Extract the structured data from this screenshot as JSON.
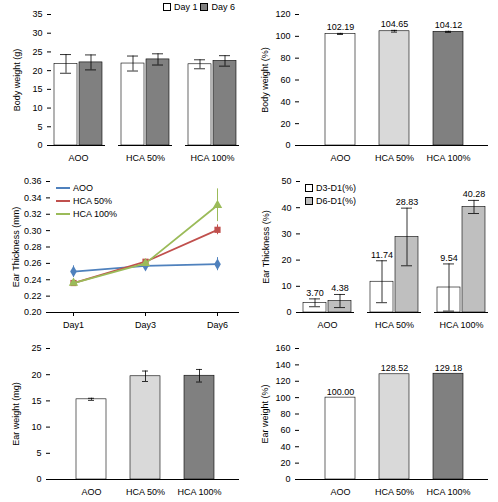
{
  "chart_data": [
    {
      "type": "bar",
      "y_label": "Body weight (g)",
      "categories": [
        "AOO",
        "HCA 50%",
        "HCA 100%"
      ],
      "series": [
        {
          "name": "Day 1",
          "color": "#ffffff",
          "values": [
            21.8,
            21.9,
            21.7
          ],
          "errors": [
            2.5,
            2.0,
            1.2
          ]
        },
        {
          "name": "Day 6",
          "color": "#808080",
          "values": [
            22.2,
            23.0,
            22.6
          ],
          "errors": [
            2.0,
            1.5,
            1.4
          ]
        }
      ],
      "ylim": [
        0,
        35
      ],
      "yticks": [
        0,
        5,
        10,
        15,
        20,
        25,
        30,
        35
      ],
      "legend": "top-right"
    },
    {
      "type": "bar",
      "y_label": "Body weight (%)",
      "categories": [
        "AOO",
        "HCA 50%",
        "HCA 100%"
      ],
      "values": [
        102.19,
        104.65,
        104.12
      ],
      "value_labels": [
        "102.19",
        "104.65",
        "104.12"
      ],
      "errors": [
        0.5,
        0.8,
        0.5
      ],
      "colors": [
        "#ffffff",
        "#d9d9d9",
        "#808080"
      ],
      "ylim": [
        0,
        120
      ],
      "yticks": [
        0,
        20,
        40,
        60,
        80,
        100,
        120
      ],
      "data_labels": true
    },
    {
      "type": "line",
      "y_label": "Ear Thickness (mm)",
      "x": [
        "Day1",
        "Day3",
        "Day6"
      ],
      "series": [
        {
          "name": "AOO",
          "color": "#4f81bd",
          "marker": "diamond",
          "values": [
            0.25,
            0.257,
            0.259
          ],
          "errors": [
            0.007,
            null,
            0.008
          ]
        },
        {
          "name": "HCA 50%",
          "color": "#c0504d",
          "marker": "square",
          "values": [
            0.236,
            0.262,
            0.301
          ],
          "errors": [
            null,
            null,
            0.006
          ]
        },
        {
          "name": "HCA 100%",
          "color": "#9bbb59",
          "marker": "triangle",
          "values": [
            0.236,
            0.26,
            0.331
          ],
          "errors": [
            null,
            null,
            0.02
          ]
        }
      ],
      "ylim": [
        0.2,
        0.36
      ],
      "yticks": [
        {
          "value": 0.2,
          "label": "0.20"
        },
        0.22,
        0.24,
        0.26,
        0.28,
        {
          "value": 0.3,
          "label": "0.30"
        },
        0.32,
        0.34,
        0.36
      ],
      "legend": "top-left"
    },
    {
      "type": "bar",
      "y_label": "Ear Thickness (%)",
      "categories": [
        "AOO",
        "HCA 50%",
        "HCA 100%"
      ],
      "series": [
        {
          "name": "D3-D1(%)",
          "color": "#ffffff",
          "values": [
            3.7,
            11.74,
            9.54
          ],
          "value_labels": [
            "3.70",
            "11.74",
            "9.54"
          ],
          "errors": [
            1.5,
            8,
            9
          ]
        },
        {
          "name": "D6-D1(%)",
          "color": "#bfbfbf",
          "values": [
            4.38,
            28.83,
            40.28
          ],
          "value_labels": [
            "4.38",
            "28.83",
            "40.28"
          ],
          "errors": [
            2.5,
            11,
            2.5
          ]
        }
      ],
      "ylim": [
        0,
        50
      ],
      "yticks": [
        0,
        10,
        20,
        30,
        40,
        50
      ],
      "legend": "top-left",
      "data_labels": true
    },
    {
      "type": "bar",
      "y_label": "Ear weight (mg)",
      "categories": [
        "AOO",
        "HCA 50%",
        "HCA 100%"
      ],
      "values": [
        15.3,
        19.7,
        19.8
      ],
      "errors": [
        0.2,
        1.0,
        1.2
      ],
      "colors": [
        "#ffffff",
        "#d9d9d9",
        "#808080"
      ],
      "ylim": [
        0,
        25
      ],
      "yticks": [
        0,
        5,
        10,
        15,
        20,
        25
      ]
    },
    {
      "type": "bar",
      "y_label": "Ear weight (%)",
      "categories": [
        "AOO",
        "HCA 50%",
        "HCA 100%"
      ],
      "values": [
        100.0,
        128.52,
        129.18
      ],
      "value_labels": [
        "100.00",
        "128.52",
        "129.18"
      ],
      "colors": [
        "#ffffff",
        "#d9d9d9",
        "#808080"
      ],
      "ylim": [
        0,
        160
      ],
      "yticks": [
        0,
        20,
        40,
        60,
        80,
        100,
        120,
        140,
        160
      ],
      "data_labels": true
    }
  ]
}
